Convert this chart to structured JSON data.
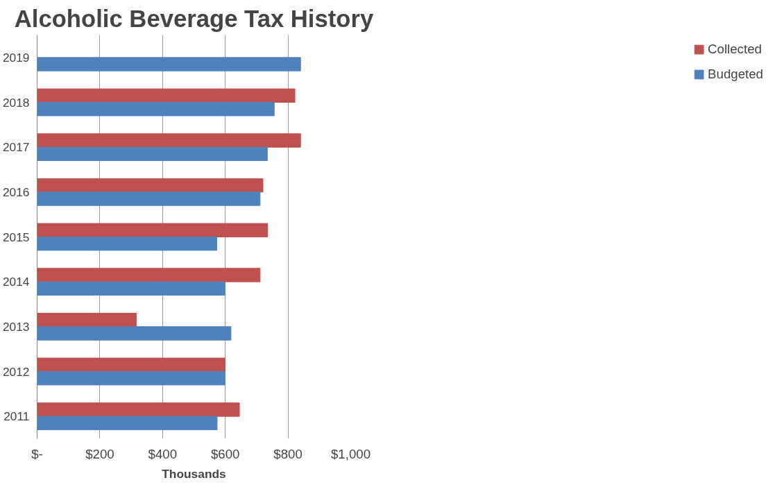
{
  "chart_data": {
    "type": "bar",
    "orientation": "horizontal",
    "title": "Alcoholic Beverage Tax History",
    "xlabel": "Thousands",
    "categories": [
      "2019",
      "2018",
      "2017",
      "2016",
      "2015",
      "2014",
      "2013",
      "2012",
      "2011"
    ],
    "series": [
      {
        "name": "Collected",
        "color": "#c0504d",
        "values": [
          null,
          822,
          840,
          720,
          735,
          711,
          316,
          599,
          645
        ]
      },
      {
        "name": "Budgeted",
        "color": "#4f81bd",
        "values": [
          840,
          756,
          734,
          711,
          573,
          599,
          618,
          599,
          574
        ]
      }
    ],
    "xlim": [
      0,
      1000
    ],
    "xticks": [
      {
        "value": 0,
        "label": "$-"
      },
      {
        "value": 200,
        "label": "$200"
      },
      {
        "value": 400,
        "label": "$400"
      },
      {
        "value": 600,
        "label": "$600"
      },
      {
        "value": 800,
        "label": "$800"
      },
      {
        "value": 1000,
        "label": "$1,000"
      }
    ],
    "grid": "x",
    "legend": "right"
  }
}
